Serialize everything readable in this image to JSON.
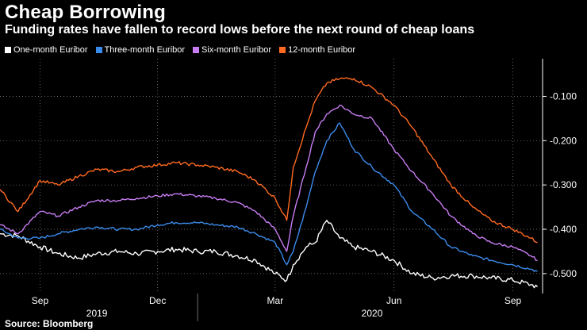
{
  "header": {
    "title": "Cheap Borrowing",
    "subtitle": "Funding rates have fallen to record lows before the next round of cheap loans"
  },
  "source": "Source: Bloomberg",
  "chart_data": {
    "type": "line",
    "title": "Cheap Borrowing",
    "subtitle": "Funding rates have fallen to record lows before the next round of cheap loans",
    "ylim": [
      -0.545,
      -0.015
    ],
    "yticks": [
      -0.1,
      -0.2,
      -0.3,
      -0.4,
      -0.5
    ],
    "ytick_labels": [
      "-0.100",
      "-0.200",
      "-0.300",
      "-0.400",
      "-0.500"
    ],
    "y_axis_side": "right",
    "x_domain": [
      "2019-08-01",
      "2020-09-24"
    ],
    "xticks": [
      {
        "label": "Sep",
        "date": "2019-09-01"
      },
      {
        "label": "Dec",
        "date": "2019-12-01"
      },
      {
        "label": "Mar",
        "date": "2020-03-01"
      },
      {
        "label": "Jun",
        "date": "2020-06-01"
      },
      {
        "label": "Sep",
        "date": "2020-09-01"
      }
    ],
    "year_labels": [
      {
        "label": "2019",
        "center": "2019-10-15"
      },
      {
        "label": "2020",
        "center": "2020-05-15"
      }
    ],
    "year_divider": "2020-01-01",
    "gridlines": "dotted",
    "series": [
      {
        "name": "One-month Euribor",
        "color": "#ffffff",
        "points": [
          [
            "2019-08-01",
            -0.41
          ],
          [
            "2019-08-15",
            -0.415
          ],
          [
            "2019-09-01",
            -0.44
          ],
          [
            "2019-09-15",
            -0.455
          ],
          [
            "2019-10-01",
            -0.465
          ],
          [
            "2019-10-15",
            -0.455
          ],
          [
            "2019-11-01",
            -0.45
          ],
          [
            "2019-11-15",
            -0.455
          ],
          [
            "2019-12-01",
            -0.45
          ],
          [
            "2019-12-15",
            -0.445
          ],
          [
            "2020-01-01",
            -0.45
          ],
          [
            "2020-01-15",
            -0.45
          ],
          [
            "2020-02-01",
            -0.46
          ],
          [
            "2020-02-15",
            -0.47
          ],
          [
            "2020-03-01",
            -0.5
          ],
          [
            "2020-03-10",
            -0.515
          ],
          [
            "2020-03-15",
            -0.48
          ],
          [
            "2020-03-25",
            -0.44
          ],
          [
            "2020-04-01",
            -0.43
          ],
          [
            "2020-04-10",
            -0.38
          ],
          [
            "2020-04-20",
            -0.42
          ],
          [
            "2020-05-01",
            -0.44
          ],
          [
            "2020-05-15",
            -0.45
          ],
          [
            "2020-06-01",
            -0.47
          ],
          [
            "2020-06-15",
            -0.5
          ],
          [
            "2020-07-01",
            -0.51
          ],
          [
            "2020-07-15",
            -0.505
          ],
          [
            "2020-08-01",
            -0.505
          ],
          [
            "2020-08-15",
            -0.51
          ],
          [
            "2020-09-01",
            -0.515
          ],
          [
            "2020-09-15",
            -0.525
          ],
          [
            "2020-09-20",
            -0.53
          ]
        ]
      },
      {
        "name": "Three-month Euribor",
        "color": "#3b8beb",
        "points": [
          [
            "2019-08-01",
            -0.4
          ],
          [
            "2019-08-15",
            -0.42
          ],
          [
            "2019-09-01",
            -0.42
          ],
          [
            "2019-09-15",
            -0.41
          ],
          [
            "2019-10-01",
            -0.4
          ],
          [
            "2019-10-15",
            -0.395
          ],
          [
            "2019-11-01",
            -0.4
          ],
          [
            "2019-11-15",
            -0.4
          ],
          [
            "2019-12-01",
            -0.39
          ],
          [
            "2019-12-15",
            -0.385
          ],
          [
            "2020-01-01",
            -0.385
          ],
          [
            "2020-01-15",
            -0.39
          ],
          [
            "2020-02-01",
            -0.395
          ],
          [
            "2020-02-15",
            -0.41
          ],
          [
            "2020-03-01",
            -0.43
          ],
          [
            "2020-03-10",
            -0.48
          ],
          [
            "2020-03-15",
            -0.45
          ],
          [
            "2020-03-25",
            -0.35
          ],
          [
            "2020-04-01",
            -0.27
          ],
          [
            "2020-04-10",
            -0.2
          ],
          [
            "2020-04-20",
            -0.16
          ],
          [
            "2020-05-01",
            -0.22
          ],
          [
            "2020-05-15",
            -0.26
          ],
          [
            "2020-06-01",
            -0.3
          ],
          [
            "2020-06-15",
            -0.36
          ],
          [
            "2020-07-01",
            -0.4
          ],
          [
            "2020-07-15",
            -0.44
          ],
          [
            "2020-08-01",
            -0.46
          ],
          [
            "2020-08-15",
            -0.47
          ],
          [
            "2020-09-01",
            -0.48
          ],
          [
            "2020-09-15",
            -0.49
          ],
          [
            "2020-09-20",
            -0.495
          ]
        ]
      },
      {
        "name": "Six-month Euribor",
        "color": "#c77cf2",
        "points": [
          [
            "2019-08-01",
            -0.39
          ],
          [
            "2019-08-15",
            -0.41
          ],
          [
            "2019-09-01",
            -0.36
          ],
          [
            "2019-09-15",
            -0.37
          ],
          [
            "2019-10-01",
            -0.35
          ],
          [
            "2019-10-15",
            -0.335
          ],
          [
            "2019-11-01",
            -0.335
          ],
          [
            "2019-11-15",
            -0.33
          ],
          [
            "2019-12-01",
            -0.325
          ],
          [
            "2019-12-15",
            -0.32
          ],
          [
            "2020-01-01",
            -0.325
          ],
          [
            "2020-01-15",
            -0.33
          ],
          [
            "2020-02-01",
            -0.34
          ],
          [
            "2020-02-15",
            -0.36
          ],
          [
            "2020-03-01",
            -0.4
          ],
          [
            "2020-03-10",
            -0.45
          ],
          [
            "2020-03-15",
            -0.37
          ],
          [
            "2020-03-25",
            -0.26
          ],
          [
            "2020-04-01",
            -0.18
          ],
          [
            "2020-04-10",
            -0.14
          ],
          [
            "2020-04-20",
            -0.12
          ],
          [
            "2020-05-01",
            -0.14
          ],
          [
            "2020-05-15",
            -0.15
          ],
          [
            "2020-06-01",
            -0.22
          ],
          [
            "2020-06-15",
            -0.27
          ],
          [
            "2020-07-01",
            -0.32
          ],
          [
            "2020-07-15",
            -0.37
          ],
          [
            "2020-08-01",
            -0.41
          ],
          [
            "2020-08-15",
            -0.43
          ],
          [
            "2020-09-01",
            -0.44
          ],
          [
            "2020-09-15",
            -0.46
          ],
          [
            "2020-09-20",
            -0.47
          ]
        ]
      },
      {
        "name": "12-month Euribor",
        "color": "#ff6a21",
        "points": [
          [
            "2019-08-01",
            -0.31
          ],
          [
            "2019-08-15",
            -0.36
          ],
          [
            "2019-09-01",
            -0.29
          ],
          [
            "2019-09-15",
            -0.3
          ],
          [
            "2019-10-01",
            -0.28
          ],
          [
            "2019-10-15",
            -0.265
          ],
          [
            "2019-11-01",
            -0.27
          ],
          [
            "2019-11-15",
            -0.26
          ],
          [
            "2019-12-01",
            -0.255
          ],
          [
            "2019-12-15",
            -0.25
          ],
          [
            "2020-01-01",
            -0.255
          ],
          [
            "2020-01-15",
            -0.26
          ],
          [
            "2020-02-01",
            -0.27
          ],
          [
            "2020-02-15",
            -0.29
          ],
          [
            "2020-03-01",
            -0.33
          ],
          [
            "2020-03-10",
            -0.38
          ],
          [
            "2020-03-15",
            -0.26
          ],
          [
            "2020-03-25",
            -0.17
          ],
          [
            "2020-04-01",
            -0.11
          ],
          [
            "2020-04-10",
            -0.07
          ],
          [
            "2020-04-20",
            -0.06
          ],
          [
            "2020-05-01",
            -0.06
          ],
          [
            "2020-05-15",
            -0.08
          ],
          [
            "2020-06-01",
            -0.12
          ],
          [
            "2020-06-15",
            -0.17
          ],
          [
            "2020-07-01",
            -0.24
          ],
          [
            "2020-07-15",
            -0.3
          ],
          [
            "2020-08-01",
            -0.35
          ],
          [
            "2020-08-15",
            -0.38
          ],
          [
            "2020-09-01",
            -0.4
          ],
          [
            "2020-09-15",
            -0.42
          ],
          [
            "2020-09-20",
            -0.43
          ]
        ]
      }
    ]
  }
}
